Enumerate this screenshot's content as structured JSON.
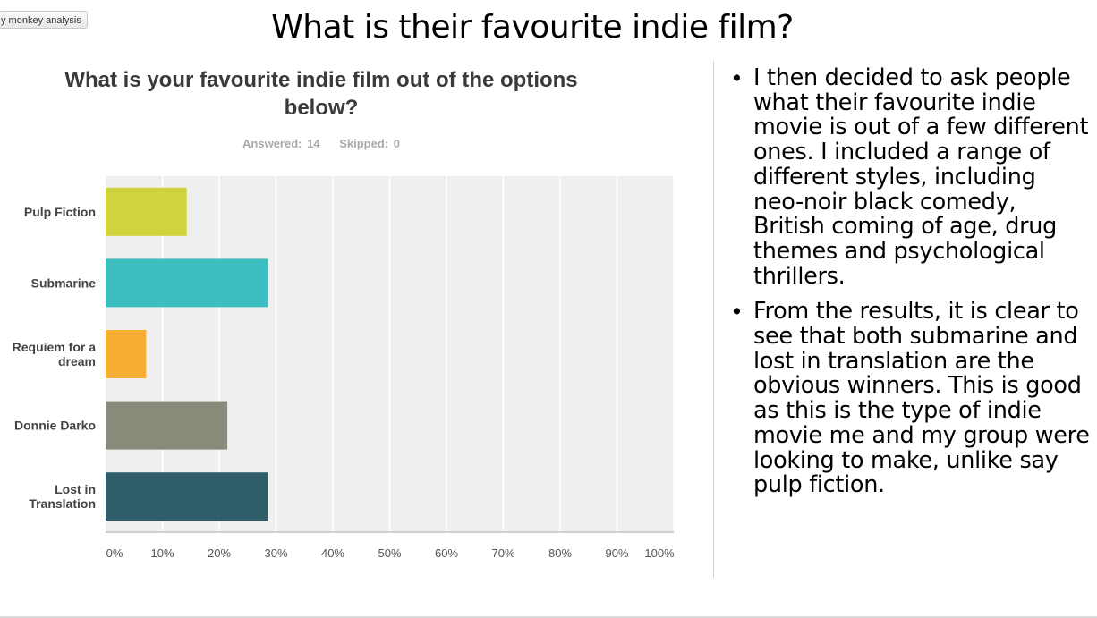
{
  "toolbar": {
    "analysis_button_label": "y monkey analysis"
  },
  "slide": {
    "title": "What is their favourite indie film?",
    "bullets": [
      "I then decided to ask people what their favourite indie movie is out of a few different ones. I included a range of different styles, including neo-noir black comedy, British coming of age, drug themes and psychological thrillers.",
      "From the results, it is clear to see that both submarine and lost in translation are the obvious winners. This is good as this is the type of indie movie me and my group were looking to make, unlike say pulp fiction."
    ]
  },
  "survey": {
    "question": "What is your favourite indie film out of the options below?",
    "answered": "Answered: 14",
    "skipped": "Skipped: 0"
  },
  "chart_data": {
    "type": "bar",
    "orientation": "horizontal",
    "title": "What is your favourite indie film out of the options below?",
    "categories": [
      "Pulp Fiction",
      "Submarine",
      "Requiem for a dream",
      "Donnie Darko",
      "Lost in Translation"
    ],
    "category_lines": [
      [
        "Pulp Fiction"
      ],
      [
        "Submarine"
      ],
      [
        "Requiem for a",
        "dream"
      ],
      [
        "Donnie Darko"
      ],
      [
        "Lost in",
        "Translation"
      ]
    ],
    "values": [
      14.29,
      28.57,
      7.14,
      21.43,
      28.57
    ],
    "colors": [
      "#d0d33c",
      "#3dbfc2",
      "#f7ae33",
      "#8a8a7a",
      "#305e68"
    ],
    "xlim": [
      0,
      100
    ],
    "xticks": [
      "0%",
      "10%",
      "20%",
      "30%",
      "40%",
      "50%",
      "60%",
      "70%",
      "80%",
      "90%",
      "100%"
    ],
    "grid": true,
    "background": "#efefef"
  }
}
